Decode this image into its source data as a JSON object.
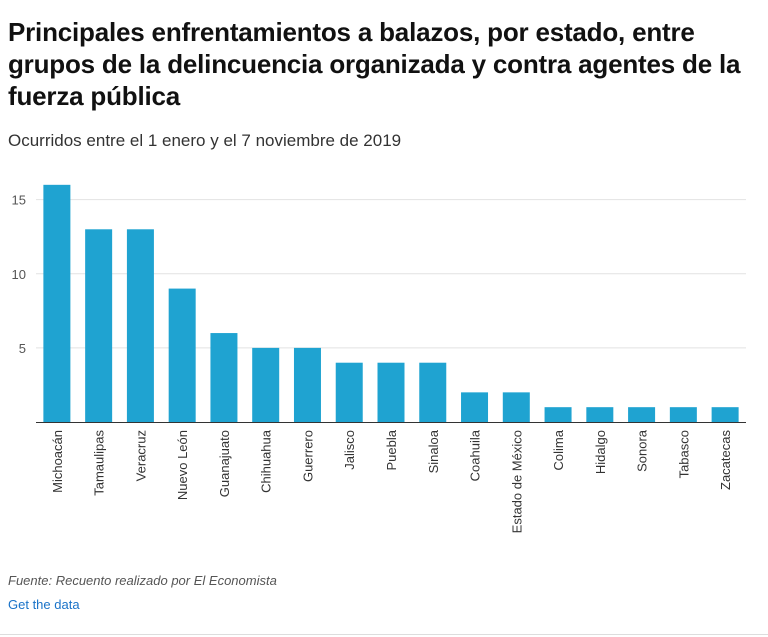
{
  "title": "Principales enfrentamientos a balazos, por estado,  entre grupos de la delincuencia organizada y contra agentes de la fuerza pública",
  "subtitle": "Ocurridos entre el 1 enero y el 7 noviembre de 2019",
  "source": "Fuente: Recuento realizado por El Economista",
  "get_data": "Get the data",
  "colors": {
    "bar": "#1fa3d1",
    "grid": "#e2e2e2",
    "axis": "#333333"
  },
  "chart_data": {
    "type": "bar",
    "title": "Principales enfrentamientos a balazos, por estado,  entre grupos de la delincuencia organizada y contra agentes de la fuerza pública",
    "categories": [
      "Michoacán",
      "Tamaulipas",
      "Veracruz",
      "Nuevo León",
      "Guanajuato",
      "Chihuahua",
      "Guerrero",
      "Jalisco",
      "Puebla",
      "Sinaloa",
      "Coahuila",
      "Estado de México",
      "Colima",
      "Hidalgo",
      "Sonora",
      "Tabasco",
      "Zacatecas"
    ],
    "values": [
      16,
      13,
      13,
      9,
      6,
      5,
      5,
      4,
      4,
      4,
      2,
      2,
      1,
      1,
      1,
      1,
      1
    ],
    "yticks": [
      5,
      10,
      15
    ],
    "ylim": [
      0,
      17
    ],
    "xlabel": "",
    "ylabel": "",
    "grid": true
  }
}
